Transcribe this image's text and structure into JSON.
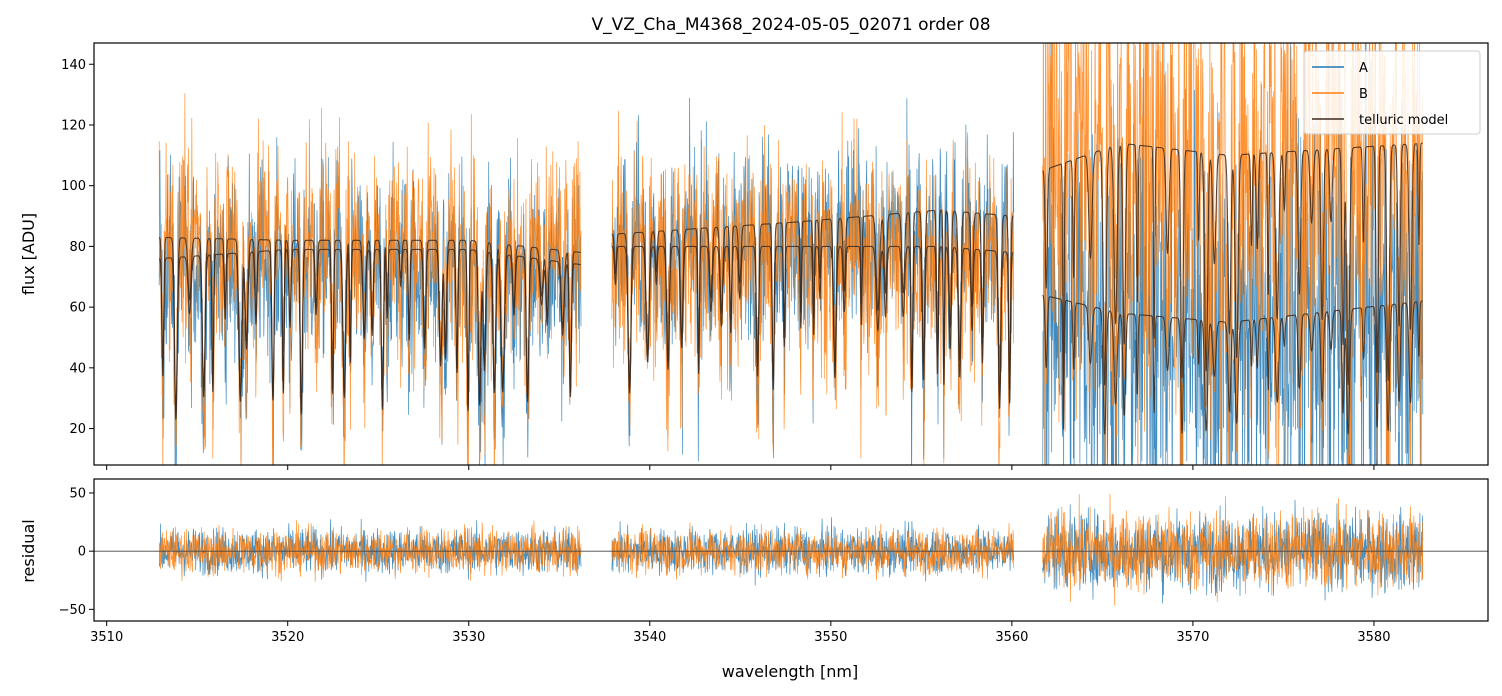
{
  "chart_data": [
    {
      "type": "line",
      "title": "V_VZ_Cha_M4368_2024-05-05_02071  order 08",
      "xlabel": "",
      "ylabel": "flux [ADU]",
      "xlim": [
        3509.3,
        3586.3
      ],
      "ylim": [
        8,
        147
      ],
      "xticks": [
        3510,
        3520,
        3530,
        3540,
        3550,
        3560,
        3570,
        3580
      ],
      "yticks": [
        20,
        40,
        60,
        80,
        100,
        120,
        140
      ],
      "x_segments": [
        [
          3512.9,
          3536.2
        ],
        [
          3537.9,
          3560.1
        ],
        [
          3561.7,
          3582.7
        ]
      ],
      "legend_position": "upper-right",
      "series": [
        {
          "name": "A",
          "color": "#1f77b4",
          "kind": "noisy-spectrum",
          "baseline": [
            [
              3512.9,
              76
            ],
            [
              3536.2,
              74
            ],
            [
              3537.9,
              82
            ],
            [
              3560.1,
              86
            ],
            [
              3561.7,
              64
            ],
            [
              3570,
              58
            ],
            [
              3582.7,
              60
            ]
          ],
          "noise": 16
        },
        {
          "name": "B",
          "color": "#ff7f0e",
          "kind": "noisy-spectrum",
          "baseline": [
            [
              3512.9,
              83
            ],
            [
              3536.2,
              80
            ],
            [
              3537.9,
              80
            ],
            [
              3560.1,
              78
            ],
            [
              3561.7,
              112
            ],
            [
              3570,
              108
            ],
            [
              3582.7,
              112
            ]
          ],
          "noise": 18
        },
        {
          "name": "telluric model",
          "color": "#3b2a20",
          "kind": "model",
          "traces": [
            [
              [
                3512.9,
                83
              ],
              [
                3520,
                82
              ],
              [
                3530,
                82
              ],
              [
                3536.2,
                78
              ]
            ],
            [
              [
                3512.9,
                76
              ],
              [
                3520,
                79
              ],
              [
                3530,
                79
              ],
              [
                3536.2,
                74
              ]
            ],
            [
              [
                3537.9,
                84
              ],
              [
                3548,
                88
              ],
              [
                3556,
                92
              ],
              [
                3560.1,
                90
              ]
            ],
            [
              [
                3537.9,
                80
              ],
              [
                3548,
                80
              ],
              [
                3556,
                80
              ],
              [
                3560.1,
                78
              ]
            ],
            [
              [
                3561.7,
                105
              ],
              [
                3566,
                114
              ],
              [
                3572,
                110
              ],
              [
                3582.7,
                114
              ]
            ],
            [
              [
                3561.7,
                64
              ],
              [
                3566,
                58
              ],
              [
                3572,
                55
              ],
              [
                3582.7,
                62
              ]
            ]
          ]
        }
      ]
    },
    {
      "type": "line",
      "title": "",
      "xlabel": "wavelength [nm]",
      "ylabel": "residual",
      "xlim": [
        3509.3,
        3586.3
      ],
      "ylim": [
        -60,
        62
      ],
      "xticks": [
        3510,
        3520,
        3530,
        3540,
        3550,
        3560,
        3570,
        3580
      ],
      "yticks": [
        -50,
        0,
        50
      ],
      "reference_line": 0,
      "series": [
        {
          "name": "A",
          "color": "#1f77b4",
          "noise_by_segment": [
            18,
            18,
            30
          ]
        },
        {
          "name": "B",
          "color": "#ff7f0e",
          "noise_by_segment": [
            18,
            18,
            32
          ]
        }
      ]
    }
  ]
}
